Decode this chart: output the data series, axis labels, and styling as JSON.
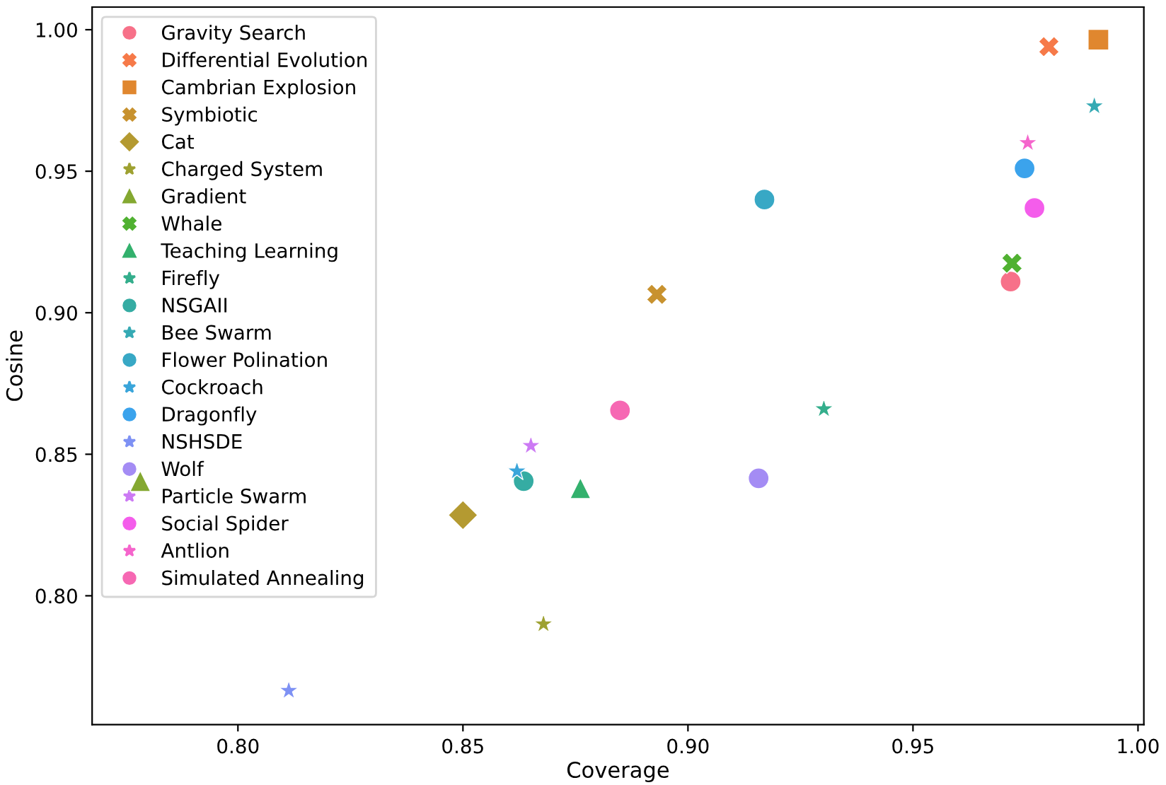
{
  "chart_data": {
    "type": "scatter",
    "xlabel": "Coverage",
    "ylabel": "Cosine",
    "xlim": [
      0.7676,
      1.0013
    ],
    "ylim": [
      0.7545,
      1.008
    ],
    "xticks": [
      {
        "value": 0.8,
        "label": "0.80"
      },
      {
        "value": 0.85,
        "label": "0.85"
      },
      {
        "value": 0.9,
        "label": "0.90"
      },
      {
        "value": 0.95,
        "label": "0.95"
      },
      {
        "value": 1.0,
        "label": "1.00"
      }
    ],
    "yticks": [
      {
        "value": 0.8,
        "label": "0.80"
      },
      {
        "value": 0.85,
        "label": "0.85"
      },
      {
        "value": 0.9,
        "label": "0.90"
      },
      {
        "value": 0.95,
        "label": "0.95"
      },
      {
        "value": 1.0,
        "label": "1.00"
      }
    ],
    "grid": false,
    "legend": "top left",
    "series": [
      {
        "name": "Gravity Search",
        "color": "#f77189",
        "marker": "circle",
        "x": [
          0.9717
        ],
        "values": [
          0.911
        ]
      },
      {
        "name": "Differential Evolution",
        "color": "#f67a49",
        "marker": "cross",
        "x": [
          0.9802
        ],
        "values": [
          0.994
        ]
      },
      {
        "name": "Cambrian Explosion",
        "color": "#e0872f",
        "marker": "square",
        "x": [
          0.9912
        ],
        "values": [
          0.9965
        ]
      },
      {
        "name": "Symbiotic",
        "color": "#c8922f",
        "marker": "cross",
        "x": [
          0.8931
        ],
        "values": [
          0.9065
        ]
      },
      {
        "name": "Cat",
        "color": "#b49a31",
        "marker": "diamond",
        "x": [
          0.85
        ],
        "values": [
          0.8285
        ]
      },
      {
        "name": "Charged System",
        "color": "#9ea131",
        "marker": "star",
        "x": [
          0.8679
        ],
        "values": [
          0.79
        ]
      },
      {
        "name": "Gradient",
        "color": "#84a831",
        "marker": "triangle",
        "x": [
          0.7783
        ],
        "values": [
          0.8405
        ]
      },
      {
        "name": "Whale",
        "color": "#50b131",
        "marker": "cross",
        "x": [
          0.972
        ],
        "values": [
          0.9175
        ]
      },
      {
        "name": "Teaching Learning",
        "color": "#33b16d",
        "marker": "triangle",
        "x": [
          0.8761
        ],
        "values": [
          0.838
        ]
      },
      {
        "name": "Firefly",
        "color": "#34ae8c",
        "marker": "star",
        "x": [
          0.9302
        ],
        "values": [
          0.866
        ]
      },
      {
        "name": "NSGAII",
        "color": "#35aca3",
        "marker": "circle",
        "x": [
          0.8635
        ],
        "values": [
          0.8405
        ]
      },
      {
        "name": "Bee Swarm",
        "color": "#36aab4",
        "marker": "star",
        "x": [
          0.9903
        ],
        "values": [
          0.973
        ]
      },
      {
        "name": "Flower Polination",
        "color": "#38a8c5",
        "marker": "circle",
        "x": [
          0.917
        ],
        "values": [
          0.94
        ]
      },
      {
        "name": "Cockroach",
        "color": "#3aa5da",
        "marker": "star",
        "x": [
          0.862
        ],
        "values": [
          0.844
        ]
      },
      {
        "name": "Dragonfly",
        "color": "#3ba3ec",
        "marker": "circle",
        "x": [
          0.9748
        ],
        "values": [
          0.951
        ]
      },
      {
        "name": "NSHSDE",
        "color": "#7e91f4",
        "marker": "star",
        "x": [
          0.8113
        ],
        "values": [
          0.7665
        ]
      },
      {
        "name": "Wolf",
        "color": "#a48cf4",
        "marker": "circle",
        "x": [
          0.9157
        ],
        "values": [
          0.8415
        ]
      },
      {
        "name": "Particle Swarm",
        "color": "#cc7af4",
        "marker": "star",
        "x": [
          0.8651
        ],
        "values": [
          0.853
        ]
      },
      {
        "name": "Social Spider",
        "color": "#f45deb",
        "marker": "circle",
        "x": [
          0.977
        ],
        "values": [
          0.937
        ]
      },
      {
        "name": "Antlion",
        "color": "#f565cc",
        "marker": "star",
        "x": [
          0.9755
        ],
        "values": [
          0.96
        ]
      },
      {
        "name": "Simulated Annealing",
        "color": "#f668b3",
        "marker": "circle",
        "x": [
          0.8849
        ],
        "values": [
          0.8655
        ]
      }
    ]
  }
}
